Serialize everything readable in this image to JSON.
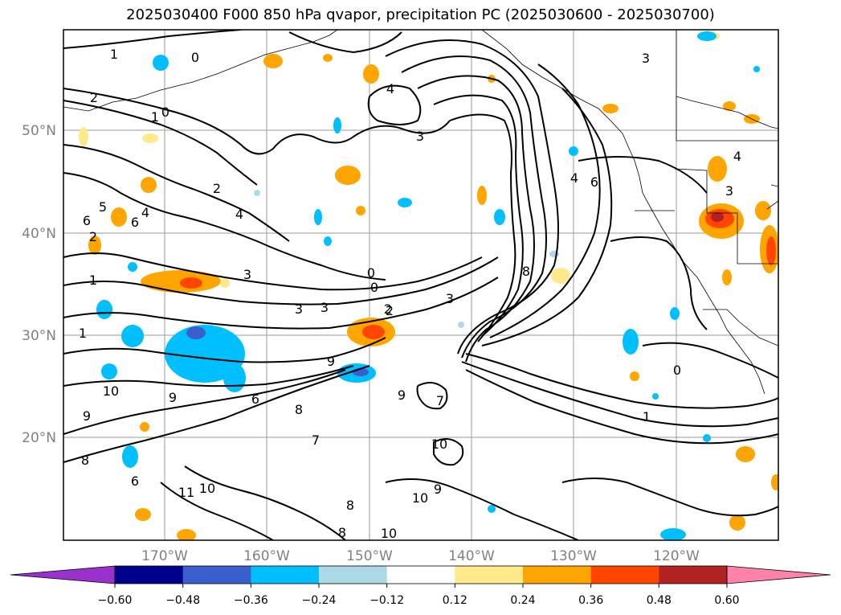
{
  "title": "2025030400 F000 850 hPa qvapor, precipitation PC (2025030600 - 2025030700)",
  "map": {
    "lat_labels": [
      "50°N",
      "40°N",
      "30°N",
      "20°N"
    ],
    "lon_labels": [
      "170°W",
      "160°W",
      "150°W",
      "140°W",
      "130°W",
      "120°W"
    ],
    "contour_labels": [
      "1",
      "0",
      "2",
      "3",
      "4",
      "3",
      "1",
      "0",
      "2",
      "5",
      "4",
      "6",
      "2",
      "4",
      "6",
      "3",
      "1",
      "0",
      "3",
      "3",
      "0",
      "1",
      "2",
      "3",
      "4",
      "6",
      "8",
      "9",
      "10",
      "9",
      "9",
      "9",
      "6",
      "8",
      "7",
      "10",
      "8",
      "11",
      "10",
      "6",
      "8",
      "10",
      "8",
      "10",
      "9",
      "7",
      "0",
      "1",
      "2",
      "3",
      "4"
    ]
  },
  "colorbar": {
    "ticks": [
      "−0.60",
      "−0.48",
      "−0.36",
      "−0.24",
      "−0.12",
      "0.12",
      "0.24",
      "0.36",
      "0.48",
      "0.60"
    ],
    "colors": [
      "#9932cc",
      "#00008b",
      "#3a5fcd",
      "#00bfff",
      "#add8e6",
      "#ffffff",
      "#ffe98a",
      "#ffa500",
      "#ff4500",
      "#b22222",
      "#ff82ab"
    ]
  }
}
